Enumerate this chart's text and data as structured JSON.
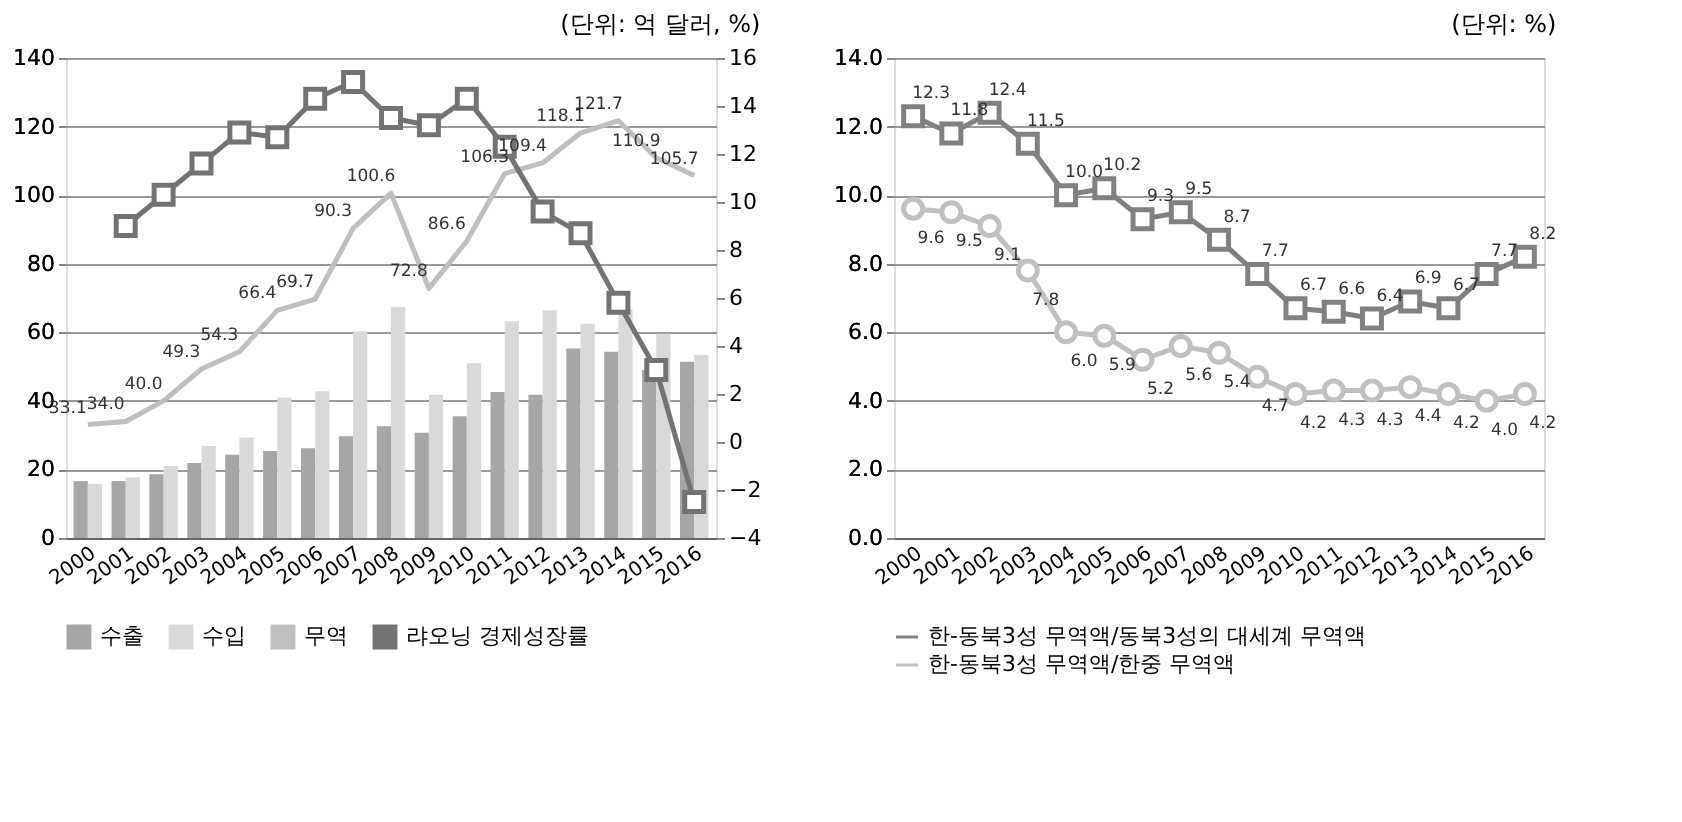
{
  "chart_data": [
    {
      "type": "bar",
      "annotations": [
        "(단위: 억 달러, %)"
      ],
      "categories": [
        "2000",
        "2001",
        "2002",
        "2003",
        "2004",
        "2005",
        "2006",
        "2007",
        "2008",
        "2009",
        "2010",
        "2011",
        "2012",
        "2013",
        "2014",
        "2015",
        "2016"
      ],
      "series": [
        {
          "name": "수출",
          "color": "#a6a6a6",
          "values": [
            16.6,
            16.6,
            18.6,
            21.9,
            24.3,
            25.4,
            26.2,
            29.7,
            32.6,
            30.7,
            35.5,
            42.6,
            41.8,
            55.3,
            54.3,
            49,
            51.4
          ]
        },
        {
          "name": "수입",
          "color": "#d9d9d9",
          "values": [
            15.8,
            17.7,
            21,
            26.8,
            29.3,
            41,
            42.8,
            60.3,
            67.4,
            41.8,
            51,
            63.2,
            66.4,
            62.5,
            66.7,
            59.6,
            53.4
          ]
        },
        {
          "name": "무역",
          "type": "line",
          "color": "#bfbfbf",
          "marker": "none",
          "values": [
            33.1,
            34.0,
            40.0,
            49.3,
            54.3,
            66.4,
            69.7,
            90.3,
            100.6,
            72.8,
            86.6,
            106.3,
            109.4,
            118.1,
            121.7,
            110.9,
            105.7
          ],
          "value_labels": [
            "33.1",
            "34.0",
            "40.0",
            "49.3",
            "54.3",
            "66.4",
            "69.7",
            "90.3",
            "100.6",
            "72.8",
            "86.6",
            "106.3",
            "109.4",
            "118.1",
            "121.7",
            "110.9",
            "105.7"
          ]
        },
        {
          "name": "랴오닝 경제성장률",
          "type": "line",
          "axis": "y2",
          "color": "#737373",
          "marker": "square",
          "values": [
            null,
            9.0,
            10.3,
            11.6,
            12.9,
            12.7,
            14.3,
            15.0,
            13.5,
            13.2,
            14.3,
            12.3,
            9.6,
            8.7,
            5.8,
            3.0,
            -2.5
          ]
        }
      ],
      "ylim": [
        0,
        140
      ],
      "yticks": [
        0,
        20,
        40,
        60,
        80,
        100,
        120,
        140
      ],
      "y2lim": [
        -4,
        16
      ],
      "y2ticks": [
        -4,
        -2,
        0,
        2,
        4,
        6,
        8,
        10,
        12,
        14,
        16
      ],
      "grid": "y",
      "legend": "bottom"
    },
    {
      "type": "line",
      "annotations": [
        "(단위: %)"
      ],
      "categories": [
        "2000",
        "2001",
        "2002",
        "2003",
        "2004",
        "2005",
        "2006",
        "2007",
        "2008",
        "2009",
        "2010",
        "2011",
        "2012",
        "2013",
        "2014",
        "2015",
        "2016"
      ],
      "series": [
        {
          "name": "한-동북3성 무역액/동북3성의 대세계 무역액",
          "color": "#808080",
          "marker": "square",
          "values": [
            12.3,
            11.8,
            12.4,
            11.5,
            10.0,
            10.2,
            9.3,
            9.5,
            8.7,
            7.7,
            6.7,
            6.6,
            6.4,
            6.9,
            6.7,
            7.7,
            8.2
          ],
          "value_labels": [
            "12.3",
            "11.8",
            "12.4",
            "11.5",
            "10.0",
            "10.2",
            "9.3",
            "9.5",
            "8.7",
            "7.7",
            "6.7",
            "6.6",
            "6.4",
            "6.9",
            "6.7",
            "7.7",
            "8.2"
          ]
        },
        {
          "name": "한-동북3성 무역액/한중 무역액",
          "color": "#c0c0c0",
          "marker": "circle",
          "values": [
            9.6,
            9.5,
            9.1,
            7.8,
            6.0,
            5.9,
            5.2,
            5.6,
            5.4,
            4.7,
            4.2,
            4.3,
            4.3,
            4.4,
            4.2,
            4.0,
            4.2
          ],
          "value_labels": [
            "9.6",
            "9.5",
            "9.1",
            "7.8",
            "6.0",
            "5.9",
            "5.2",
            "5.6",
            "5.4",
            "4.7",
            "4.2",
            "4.3",
            "4.3",
            "4.4",
            "4.2",
            "4.0",
            "4.2"
          ]
        }
      ],
      "ylim": [
        0,
        14
      ],
      "yticks": [
        {
          "value": 0,
          "label": "0.0"
        },
        {
          "value": 2,
          "label": "2.0"
        },
        {
          "value": 4,
          "label": "4.0"
        },
        {
          "value": 6,
          "label": "6.0"
        },
        {
          "value": 8,
          "label": "8.0"
        },
        {
          "value": 10,
          "label": "10.0"
        },
        {
          "value": 12,
          "label": "12.0"
        },
        {
          "value": 14,
          "label": "14.0"
        }
      ],
      "grid": "y",
      "legend": "bottom"
    }
  ]
}
